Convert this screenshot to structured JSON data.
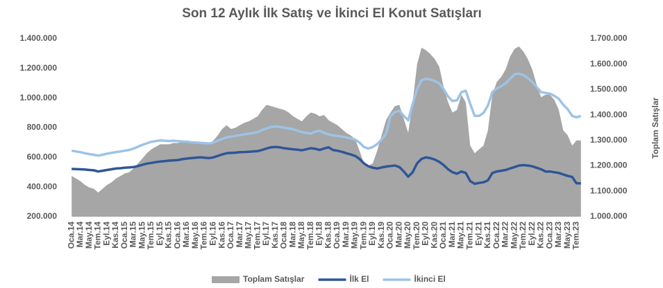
{
  "chart_data": {
    "type": "combo",
    "title": "Son 12 Aylık İlk Satış ve İkinci El Konut Satışları",
    "y2label": "Toplam Satışlar",
    "categories": [
      "Oca.14",
      null,
      "Mar.14",
      null,
      "May.14",
      null,
      "Tem.14",
      null,
      "Eyl.14",
      null,
      "Kas.14",
      null,
      "Oca.15",
      null,
      "Mar.15",
      null,
      "May.15",
      null,
      "Tem.15",
      null,
      "Eyl.15",
      null,
      "Kas.15",
      null,
      "Oca.16",
      null,
      "Mar.16",
      null,
      "May.16",
      null,
      "Tem.16",
      null,
      "Eyl.16",
      null,
      "Kas.16",
      null,
      "Oca.17",
      null,
      "Mar.17",
      null,
      "May.17",
      null,
      "Tem.17",
      null,
      "Eyl.17",
      null,
      "Kas.17",
      null,
      "Oca.18",
      null,
      "Mar.18",
      null,
      "May.18",
      null,
      "Tem.18",
      null,
      "Eyl.18",
      null,
      "Kas.18",
      null,
      "Oca.19",
      null,
      "Mar.19",
      null,
      "May.19",
      null,
      "Tem.19",
      null,
      "Eyl.19",
      null,
      "Kas.19",
      null,
      "Oca.20",
      null,
      "Mar.20",
      null,
      "May.20",
      null,
      "Tem.20",
      null,
      "Eyl.20",
      null,
      "Kas.20",
      null,
      "Oca.21",
      null,
      "Mar.21",
      null,
      "May.21",
      null,
      "Tem.21",
      null,
      "Eyl.21",
      null,
      "Kas.21",
      null,
      "Oca.22",
      null,
      "Mar.22",
      null,
      "May.22",
      null,
      "Tem.22",
      null,
      "Eyl.22",
      null,
      "Kas.22",
      null,
      "Oca.23",
      null,
      "Mar.23",
      null,
      "May.23",
      null,
      "Tem.23",
      null
    ],
    "series": [
      {
        "name": "Toplam Satışlar",
        "kind": "area",
        "axis": "y2",
        "color": "#a6a6a6",
        "values": [
          1160000,
          1150000,
          1140000,
          1125000,
          1115000,
          1110000,
          1095000,
          1110000,
          1125000,
          1135000,
          1150000,
          1160000,
          1170000,
          1175000,
          1190000,
          1210000,
          1230000,
          1250000,
          1265000,
          1275000,
          1285000,
          1285000,
          1285000,
          1290000,
          1290000,
          1295000,
          1295000,
          1295000,
          1295000,
          1295000,
          1290000,
          1285000,
          1300000,
          1320000,
          1345000,
          1360000,
          1345000,
          1350000,
          1360000,
          1370000,
          1375000,
          1385000,
          1395000,
          1420000,
          1440000,
          1435000,
          1430000,
          1425000,
          1420000,
          1410000,
          1395000,
          1385000,
          1375000,
          1395000,
          1410000,
          1405000,
          1395000,
          1400000,
          1380000,
          1370000,
          1360000,
          1345000,
          1330000,
          1320000,
          1305000,
          1260000,
          1210000,
          1200000,
          1210000,
          1260000,
          1320000,
          1380000,
          1410000,
          1435000,
          1440000,
          1385000,
          1330000,
          1450000,
          1600000,
          1665000,
          1655000,
          1640000,
          1620000,
          1590000,
          1510000,
          1450000,
          1410000,
          1420000,
          1480000,
          1450000,
          1280000,
          1250000,
          1265000,
          1280000,
          1340000,
          1480000,
          1530000,
          1550000,
          1580000,
          1630000,
          1660000,
          1670000,
          1650000,
          1620000,
          1580000,
          1520000,
          1470000,
          1480000,
          1480000,
          1460000,
          1420000,
          1340000,
          1320000,
          1280000,
          1300000,
          1300000
        ]
      },
      {
        "name": "İlk El",
        "kind": "line",
        "color": "#2f5597",
        "values": [
          522000,
          521000,
          520000,
          518000,
          515000,
          513000,
          505000,
          510000,
          515000,
          520000,
          525000,
          527000,
          530000,
          532000,
          535000,
          542000,
          550000,
          558000,
          563000,
          568000,
          572000,
          575000,
          578000,
          580000,
          582000,
          588000,
          592000,
          595000,
          598000,
          600000,
          598000,
          595000,
          600000,
          610000,
          620000,
          628000,
          630000,
          632000,
          635000,
          636000,
          638000,
          640000,
          642000,
          650000,
          660000,
          668000,
          670000,
          668000,
          662000,
          658000,
          655000,
          652000,
          648000,
          655000,
          662000,
          658000,
          650000,
          660000,
          668000,
          650000,
          645000,
          638000,
          628000,
          620000,
          610000,
          590000,
          560000,
          540000,
          530000,
          525000,
          532000,
          538000,
          542000,
          545000,
          535000,
          505000,
          470000,
          500000,
          560000,
          590000,
          600000,
          595000,
          585000,
          570000,
          548000,
          520000,
          500000,
          490000,
          505000,
          495000,
          440000,
          422000,
          428000,
          432000,
          445000,
          495000,
          505000,
          510000,
          515000,
          525000,
          535000,
          545000,
          548000,
          545000,
          540000,
          530000,
          520000,
          505000,
          505000,
          500000,
          495000,
          485000,
          475000,
          468000,
          425000,
          425000
        ]
      },
      {
        "name": "İkinci El",
        "kind": "line",
        "color": "#9dc3e6",
        "values": [
          645000,
          640000,
          635000,
          628000,
          622000,
          618000,
          612000,
          618000,
          625000,
          630000,
          636000,
          640000,
          645000,
          650000,
          660000,
          672000,
          685000,
          695000,
          705000,
          710000,
          715000,
          712000,
          710000,
          712000,
          710000,
          708000,
          706000,
          702000,
          700000,
          698000,
          696000,
          694000,
          700000,
          712000,
          725000,
          735000,
          740000,
          745000,
          750000,
          755000,
          760000,
          765000,
          770000,
          785000,
          795000,
          805000,
          808000,
          805000,
          800000,
          795000,
          790000,
          780000,
          770000,
          765000,
          760000,
          775000,
          780000,
          765000,
          755000,
          748000,
          745000,
          740000,
          735000,
          728000,
          720000,
          700000,
          670000,
          660000,
          670000,
          690000,
          720000,
          760000,
          880000,
          905000,
          915000,
          880000,
          850000,
          960000,
          1060000,
          1120000,
          1130000,
          1125000,
          1115000,
          1100000,
          1060000,
          1010000,
          980000,
          985000,
          1040000,
          1050000,
          960000,
          880000,
          880000,
          900000,
          950000,
          1040000,
          1065000,
          1080000,
          1100000,
          1130000,
          1160000,
          1165000,
          1155000,
          1135000,
          1110000,
          1075000,
          1040000,
          1035000,
          1030000,
          1015000,
          995000,
          955000,
          925000,
          880000,
          870000,
          880000
        ]
      }
    ],
    "ylim": [
      200000,
      1400000
    ],
    "yticks": [
      {
        "value": 200000,
        "label": "200.000"
      },
      {
        "value": 400000,
        "label": "400.000"
      },
      {
        "value": 600000,
        "label": "600.000"
      },
      {
        "value": 800000,
        "label": "800.000"
      },
      {
        "value": 1000000,
        "label": "1.000.000"
      },
      {
        "value": 1200000,
        "label": "1.200.000"
      },
      {
        "value": 1400000,
        "label": "1.400.000"
      }
    ],
    "y2lim": [
      1000000,
      1700000
    ],
    "y2ticks": [
      {
        "value": 1000000,
        "label": "1.000.000"
      },
      {
        "value": 1100000,
        "label": "1.100.000"
      },
      {
        "value": 1200000,
        "label": "1.200.000"
      },
      {
        "value": 1300000,
        "label": "1.300.000"
      },
      {
        "value": 1400000,
        "label": "1.400.000"
      },
      {
        "value": 1500000,
        "label": "1.500.000"
      },
      {
        "value": 1600000,
        "label": "1.600.000"
      },
      {
        "value": 1700000,
        "label": "1.700.000"
      }
    ],
    "legend": "bottom"
  }
}
